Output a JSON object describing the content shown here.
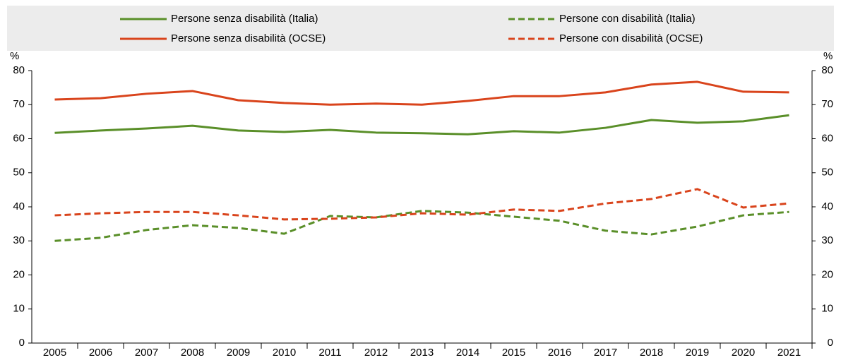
{
  "chart_data": {
    "type": "line",
    "ylabel": "%",
    "y2label": "%",
    "categories": [
      "2005",
      "2006",
      "2007",
      "2008",
      "2009",
      "2010",
      "2011",
      "2012",
      "2013",
      "2014",
      "2015",
      "2016",
      "2017",
      "2018",
      "2019",
      "2020",
      "2021"
    ],
    "series": [
      {
        "name": "Persone senza disabilità (Italia)",
        "color": "#5a8f29",
        "dash": false,
        "values": [
          61.7,
          62.4,
          63.0,
          63.8,
          62.4,
          62.0,
          62.6,
          61.8,
          61.6,
          61.3,
          62.2,
          61.8,
          63.2,
          65.5,
          64.7,
          65.1,
          66.9
        ]
      },
      {
        "name": "Persone con disabilità (Italia)",
        "color": "#5a8f29",
        "dash": true,
        "values": [
          30.0,
          30.9,
          33.2,
          34.6,
          33.8,
          32.1,
          37.3,
          36.9,
          38.8,
          38.3,
          37.1,
          35.9,
          33.0,
          31.9,
          34.2,
          37.5,
          38.5
        ]
      },
      {
        "name": "Persone senza disabilità (OCSE)",
        "color": "#d9441c",
        "dash": false,
        "values": [
          71.5,
          71.9,
          73.2,
          74.0,
          71.3,
          70.5,
          70.0,
          70.3,
          70.0,
          71.1,
          72.5,
          72.5,
          73.6,
          75.9,
          76.7,
          73.8,
          73.6
        ]
      },
      {
        "name": "Persone con disabilità (OCSE)",
        "color": "#d9441c",
        "dash": true,
        "values": [
          37.5,
          38.1,
          38.5,
          38.5,
          37.5,
          36.3,
          36.5,
          36.9,
          38.1,
          37.7,
          39.2,
          38.8,
          41.0,
          42.3,
          45.2,
          39.8,
          41.0
        ]
      }
    ],
    "ylim": [
      0,
      80
    ],
    "yticks": [
      0,
      10,
      20,
      30,
      40,
      50,
      60,
      70,
      80
    ],
    "y2lim": [
      0,
      80
    ],
    "y2ticks": [
      0,
      10,
      20,
      30,
      40,
      50,
      60,
      70,
      80
    ],
    "grid": false
  }
}
